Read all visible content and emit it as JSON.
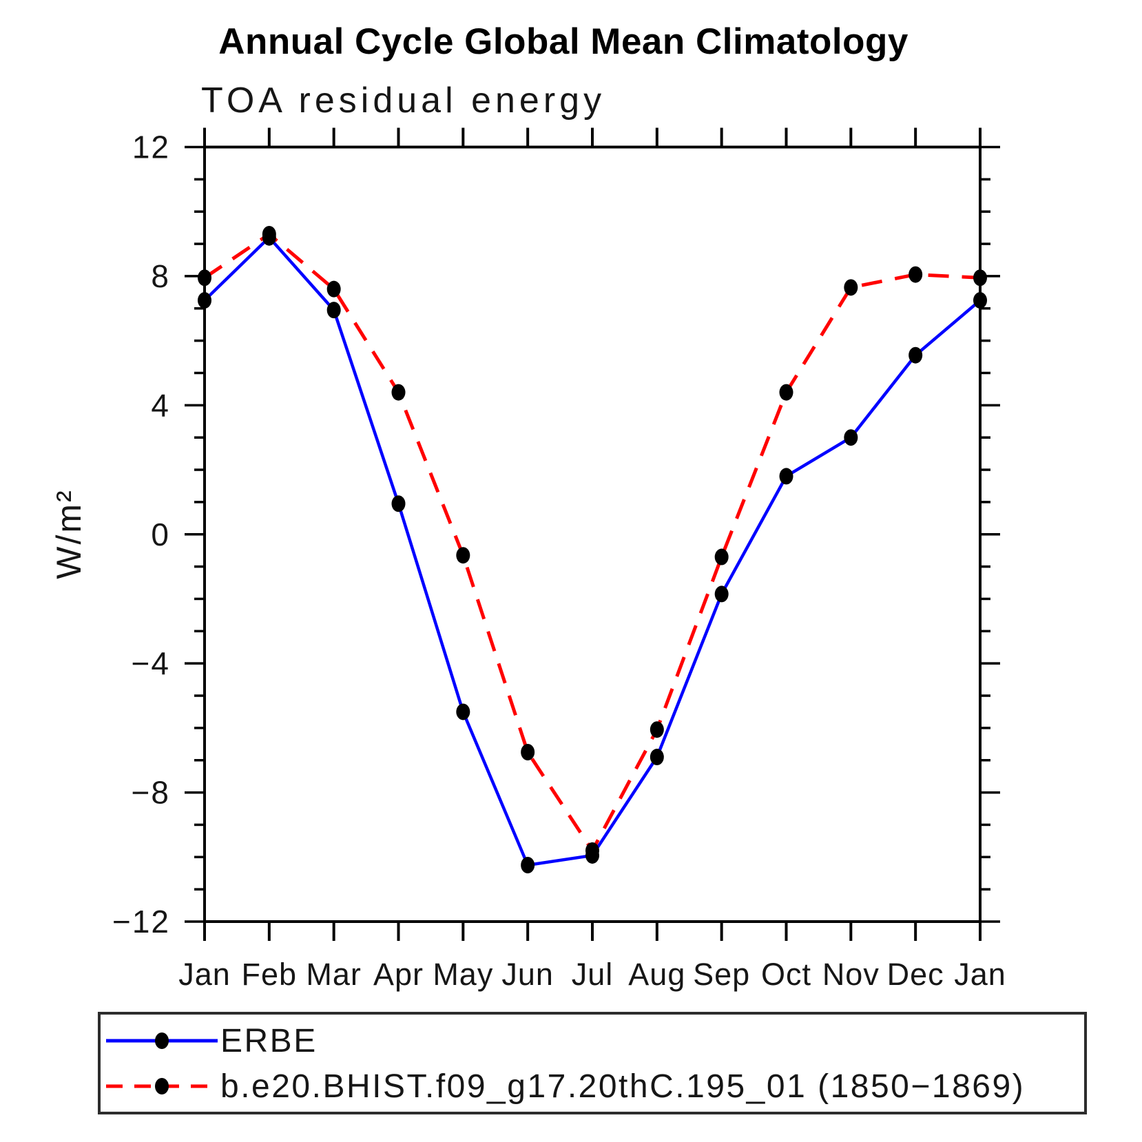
{
  "header": {
    "title": "Annual Cycle Global Mean Climatology",
    "subtitle": "TOA residual energy"
  },
  "axes": {
    "y_axis_title": "W/m²",
    "y_tick_values": [
      12,
      8,
      4,
      0,
      -4,
      -8,
      -12
    ],
    "y_tick_labels": [
      "12",
      "8",
      "4",
      "0",
      "−4",
      "−8",
      "−12"
    ],
    "y_minor_step": 1,
    "axis_color": "#000000"
  },
  "chart_data": {
    "type": "line",
    "title": "Annual Cycle Global Mean Climatology",
    "subtitle": "TOA residual energy",
    "xlabel": "",
    "ylabel": "W/m²",
    "ylim": [
      -12,
      12
    ],
    "y_major_tick_step": 4,
    "y_minor_tick_step": 1,
    "grid": false,
    "legend_position": "bottom-left-box",
    "categories": [
      "Jan",
      "Feb",
      "Mar",
      "Apr",
      "May",
      "Jun",
      "Jul",
      "Aug",
      "Sep",
      "Oct",
      "Nov",
      "Dec",
      "Jan"
    ],
    "series": [
      {
        "name": "ERBE",
        "color": "#0000ff",
        "line_style": "solid",
        "line_width": 4.5,
        "marker": "filled-circle",
        "marker_color": "#000000",
        "values": [
          7.25,
          9.2,
          6.95,
          0.95,
          -5.5,
          -10.25,
          -9.95,
          -6.9,
          -1.85,
          1.8,
          3.0,
          5.55,
          7.25
        ]
      },
      {
        "name": "b.e20.BHIST.f09_g17.20thC.195_01 (1850−1869)",
        "color": "#ff0000",
        "line_style": "dashed",
        "dash": "30 19",
        "legend_dash": "24 17",
        "line_width": 5,
        "marker": "filled-circle",
        "marker_color": "#000000",
        "values": [
          7.95,
          9.3,
          7.6,
          4.4,
          -0.65,
          -6.75,
          -9.8,
          -6.05,
          -0.7,
          4.4,
          7.65,
          8.05,
          7.95
        ]
      }
    ]
  },
  "legend": {
    "entries": [
      {
        "label": "ERBE"
      },
      {
        "label": "b.e20.BHIST.f09_g17.20thC.195_01 (1850−1869)"
      }
    ]
  }
}
